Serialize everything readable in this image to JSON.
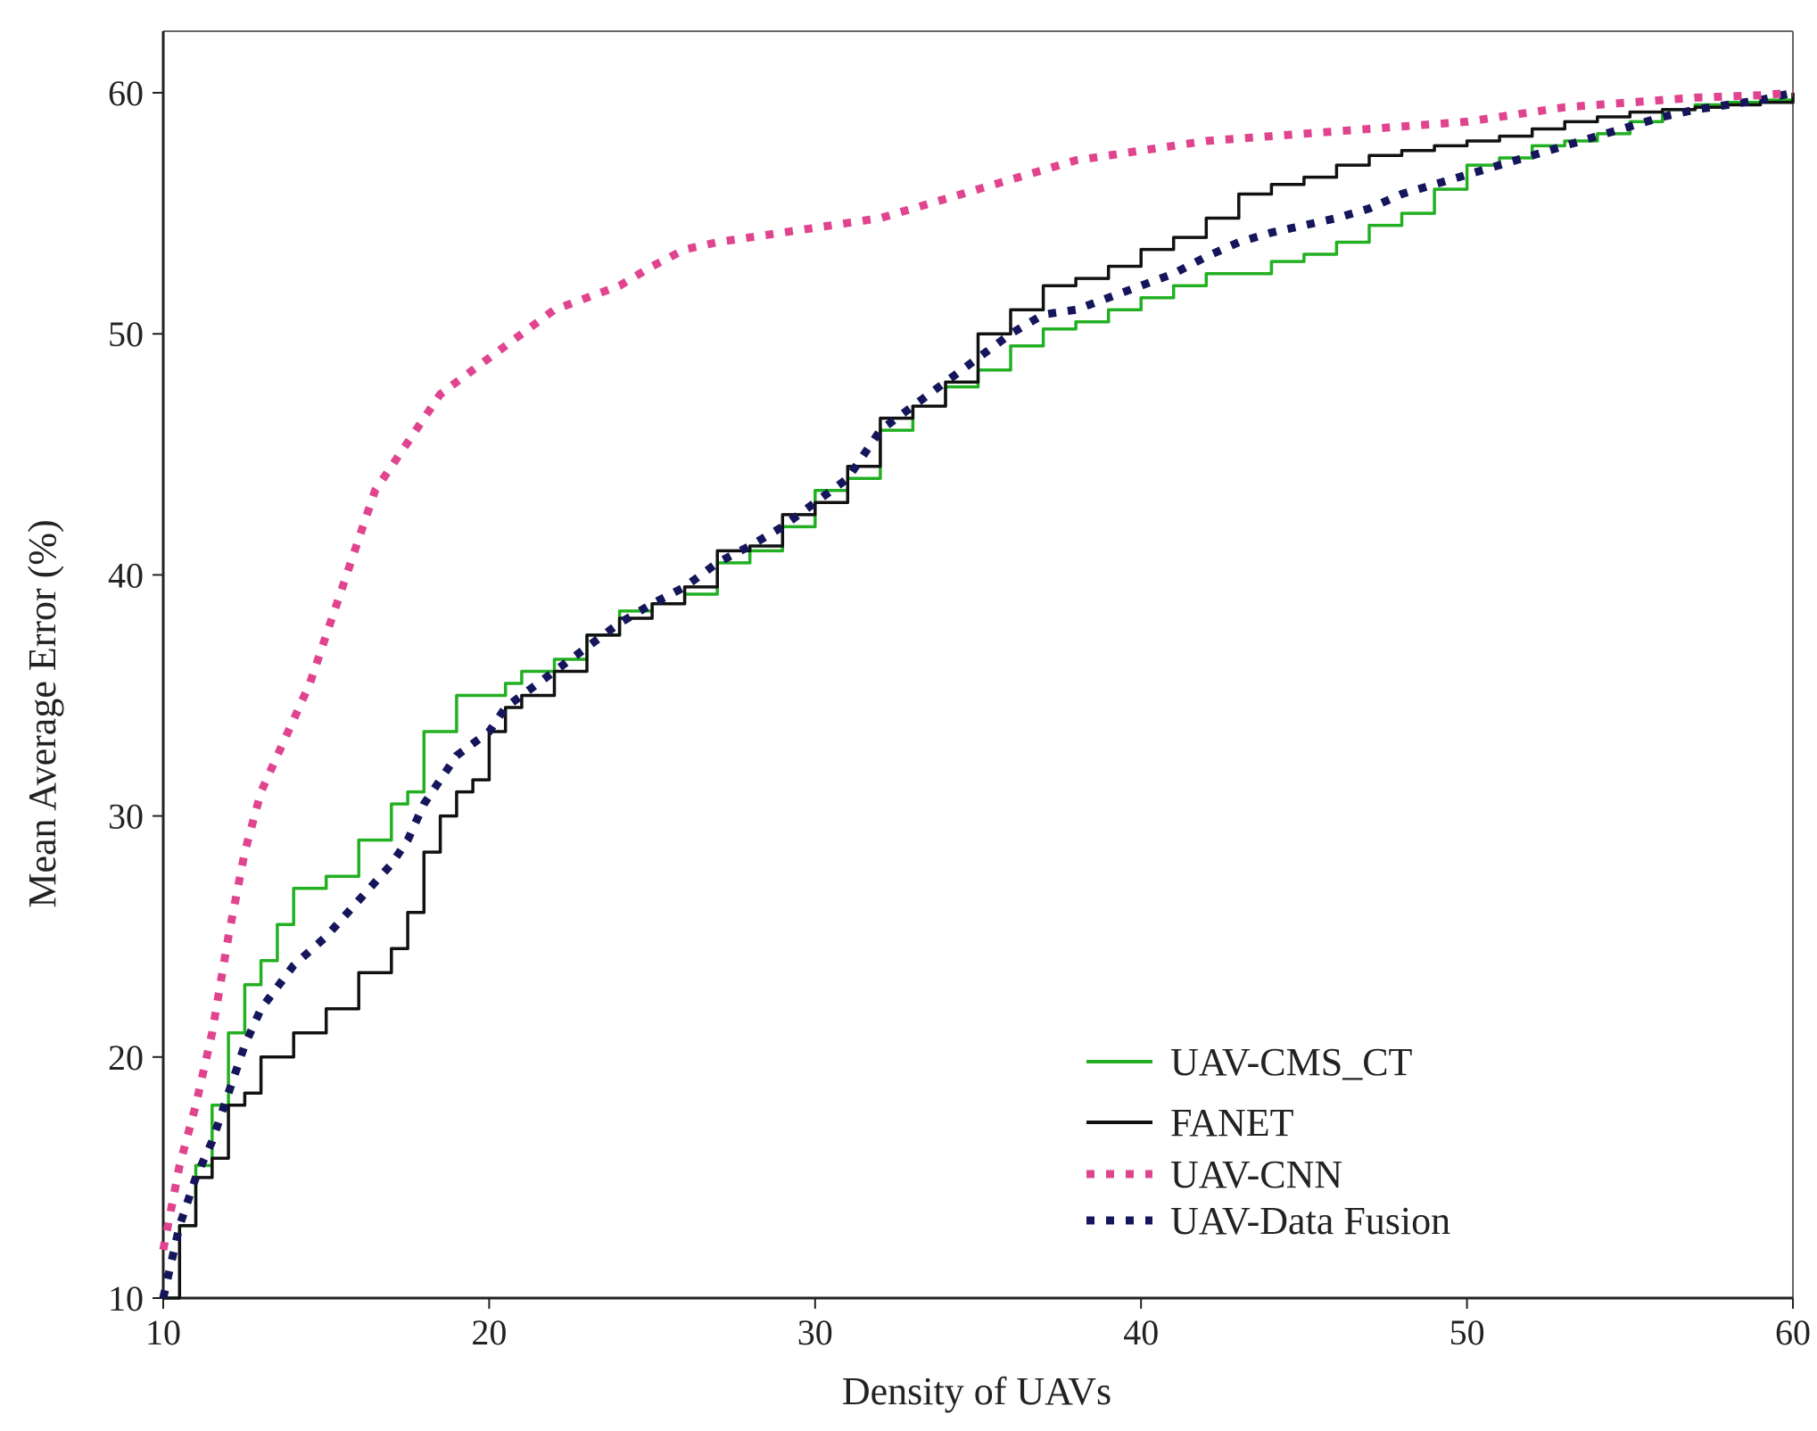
{
  "chart_data": {
    "type": "line",
    "title": "",
    "xlabel": "Density of UAVs",
    "ylabel": "Mean Average Error (%)",
    "xlim": [
      10,
      60
    ],
    "ylim": [
      10,
      60
    ],
    "xticks": [
      "10",
      "20",
      "30",
      "40",
      "50",
      "60"
    ],
    "yticks": [
      "10",
      "20",
      "30",
      "40",
      "50",
      "60"
    ],
    "grid": false,
    "legend_position": "bottom-right",
    "series": [
      {
        "name": "UAV-CMS_CT",
        "color": "#22b022",
        "style": "solid",
        "x": [
          10,
          10.5,
          11,
          11.5,
          12,
          12.5,
          13,
          13.5,
          14,
          15,
          16,
          17,
          17.5,
          18,
          18.5,
          19,
          20,
          20.5,
          21,
          22,
          23,
          24,
          25,
          26,
          27,
          28,
          29,
          30,
          31,
          32,
          33,
          34,
          35,
          36,
          37,
          38,
          39,
          40,
          41,
          42,
          43,
          44,
          45,
          46,
          47,
          48,
          49,
          50,
          51,
          52,
          53,
          54,
          55,
          56,
          57,
          58,
          59,
          60
        ],
        "y": [
          10,
          13,
          15.5,
          18,
          21,
          23,
          24,
          25.5,
          27,
          27.5,
          29,
          30.5,
          31,
          33.5,
          33.5,
          35,
          35,
          35.5,
          36,
          36.5,
          37.5,
          38.5,
          38.8,
          39.2,
          40.5,
          41,
          42,
          43.5,
          44,
          46,
          47,
          47.8,
          48.5,
          49.5,
          50.2,
          50.5,
          51,
          51.5,
          52,
          52.5,
          52.5,
          53,
          53.3,
          53.8,
          54.5,
          55,
          56,
          57,
          57.3,
          57.8,
          58,
          58.3,
          58.8,
          59.3,
          59.5,
          59.6,
          59.7,
          60
        ]
      },
      {
        "name": "FANET",
        "color": "#111111",
        "style": "solid",
        "x": [
          10,
          10.5,
          11,
          11.5,
          12,
          12.5,
          13,
          14,
          15,
          16,
          17,
          17.5,
          18,
          18.5,
          19,
          19.5,
          20,
          20.5,
          21,
          22,
          23,
          24,
          25,
          26,
          27,
          28,
          29,
          30,
          31,
          32,
          33,
          34,
          35,
          36,
          37,
          38,
          39,
          40,
          41,
          42,
          43,
          44,
          45,
          46,
          47,
          48,
          49,
          50,
          51,
          52,
          53,
          54,
          55,
          56,
          57,
          58,
          59,
          60
        ],
        "y": [
          10,
          13,
          15,
          15.8,
          18,
          18.5,
          20,
          21,
          22,
          23.5,
          24.5,
          26,
          28.5,
          30,
          31,
          31.5,
          33.5,
          34.5,
          35,
          36,
          37.5,
          38.2,
          38.8,
          39.5,
          41,
          41.2,
          42.5,
          43,
          44.5,
          46.5,
          47,
          48,
          50,
          51,
          52,
          52.3,
          52.8,
          53.5,
          54,
          54.8,
          55.8,
          56.2,
          56.5,
          57,
          57.4,
          57.6,
          57.8,
          58,
          58.2,
          58.5,
          58.8,
          59,
          59.2,
          59.3,
          59.4,
          59.5,
          59.6,
          60
        ]
      },
      {
        "name": "UAV-CNN",
        "color": "#e0448f",
        "style": "dotted",
        "x": [
          10,
          10.5,
          11,
          11.5,
          12,
          12.5,
          13,
          13.5,
          14,
          14.5,
          15,
          15.5,
          16,
          16.5,
          17,
          17.5,
          18,
          18.5,
          19,
          19.5,
          20,
          21,
          22,
          23,
          24,
          25,
          26,
          27,
          28,
          29,
          30,
          31,
          32,
          33,
          34,
          35,
          36,
          37,
          38,
          39,
          40,
          41,
          42,
          43,
          44,
          45,
          46,
          47,
          48,
          49,
          50,
          51,
          52,
          53,
          54,
          55,
          56,
          57,
          58,
          59,
          60
        ],
        "y": [
          12,
          15.5,
          18,
          21,
          25,
          28.5,
          31,
          32.5,
          34,
          35.5,
          37.5,
          39.5,
          41.5,
          43.5,
          44.5,
          45.5,
          46.5,
          47.5,
          48,
          48.5,
          49,
          50,
          51,
          51.5,
          52,
          52.8,
          53.5,
          53.8,
          54,
          54.2,
          54.4,
          54.6,
          54.8,
          55.2,
          55.6,
          56,
          56.4,
          56.8,
          57.2,
          57.4,
          57.6,
          57.8,
          58,
          58.1,
          58.2,
          58.3,
          58.4,
          58.5,
          58.6,
          58.7,
          58.8,
          59,
          59.2,
          59.4,
          59.5,
          59.6,
          59.7,
          59.8,
          59.85,
          59.9,
          60
        ]
      },
      {
        "name": "UAV-Data Fusion",
        "color": "#15155c",
        "style": "dotted",
        "x": [
          10,
          10.5,
          11,
          11.5,
          12,
          12.5,
          13,
          14,
          15,
          16,
          17,
          17.5,
          18,
          18.5,
          19,
          20,
          20.5,
          21,
          22,
          23,
          24,
          25,
          26,
          27,
          28,
          29,
          30,
          31,
          32,
          33,
          34,
          35,
          36,
          37,
          38,
          39,
          40,
          41,
          42,
          43,
          44,
          45,
          46,
          47,
          48,
          49,
          50,
          51,
          52,
          53,
          54,
          55,
          56,
          57,
          58,
          59,
          60
        ],
        "y": [
          10,
          13,
          15,
          16.5,
          18.5,
          20.5,
          22,
          23.8,
          25,
          26.5,
          28,
          29,
          30.5,
          31.5,
          32.5,
          33.5,
          34.5,
          35,
          36,
          37,
          38,
          38.8,
          39.5,
          40.5,
          41.2,
          42,
          43,
          44,
          46,
          47,
          48,
          49,
          50,
          50.8,
          51,
          51.5,
          52,
          52.5,
          53.2,
          53.8,
          54.2,
          54.5,
          54.8,
          55.2,
          55.8,
          56.2,
          56.6,
          57,
          57.4,
          57.8,
          58.2,
          58.6,
          59,
          59.3,
          59.5,
          59.7,
          60
        ]
      }
    ]
  }
}
